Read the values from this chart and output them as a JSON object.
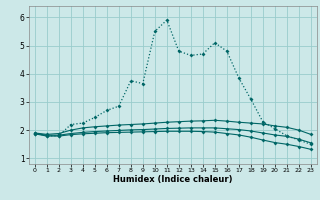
{
  "xlabel": "Humidex (Indice chaleur)",
  "xlim": [
    -0.5,
    23.5
  ],
  "ylim": [
    0.8,
    6.4
  ],
  "yticks": [
    1,
    2,
    3,
    4,
    5,
    6
  ],
  "xticks": [
    0,
    1,
    2,
    3,
    4,
    5,
    6,
    7,
    8,
    9,
    10,
    11,
    12,
    13,
    14,
    15,
    16,
    17,
    18,
    19,
    20,
    21,
    22,
    23
  ],
  "bg_color": "#cce8e8",
  "grid_color": "#99cccc",
  "line_color": "#006666",
  "line_main_dotted": {
    "x": [
      0,
      1,
      2,
      3,
      4,
      5,
      6,
      7,
      8,
      9,
      10,
      11,
      12,
      13,
      14,
      15,
      16,
      17,
      18,
      19,
      20,
      21,
      22,
      23
    ],
    "y": [
      1.9,
      1.8,
      1.8,
      2.2,
      2.25,
      2.45,
      2.7,
      2.85,
      3.75,
      3.65,
      5.5,
      5.9,
      4.8,
      4.65,
      4.7,
      5.1,
      4.8,
      3.85,
      3.1,
      2.3,
      2.05,
      1.8,
      1.65,
      1.5
    ]
  },
  "line_upper": {
    "x": [
      0,
      1,
      2,
      3,
      4,
      5,
      6,
      7,
      8,
      9,
      10,
      11,
      12,
      13,
      14,
      15,
      16,
      17,
      18,
      19,
      20,
      21,
      22,
      23
    ],
    "y": [
      1.9,
      1.85,
      1.88,
      2.0,
      2.08,
      2.12,
      2.15,
      2.18,
      2.2,
      2.22,
      2.25,
      2.28,
      2.3,
      2.32,
      2.33,
      2.35,
      2.32,
      2.28,
      2.25,
      2.22,
      2.15,
      2.1,
      2.0,
      1.85
    ]
  },
  "line_mid": {
    "x": [
      0,
      1,
      2,
      3,
      4,
      5,
      6,
      7,
      8,
      9,
      10,
      11,
      12,
      13,
      14,
      15,
      16,
      17,
      18,
      19,
      20,
      21,
      22,
      23
    ],
    "y": [
      1.88,
      1.82,
      1.82,
      1.88,
      1.92,
      1.95,
      1.97,
      1.99,
      2.01,
      2.02,
      2.04,
      2.06,
      2.07,
      2.08,
      2.08,
      2.08,
      2.05,
      2.02,
      1.97,
      1.9,
      1.83,
      1.78,
      1.68,
      1.55
    ]
  },
  "line_lower": {
    "x": [
      0,
      1,
      2,
      3,
      4,
      5,
      6,
      7,
      8,
      9,
      10,
      11,
      12,
      13,
      14,
      15,
      16,
      17,
      18,
      19,
      20,
      21,
      22,
      23
    ],
    "y": [
      1.87,
      1.79,
      1.79,
      1.84,
      1.87,
      1.89,
      1.91,
      1.92,
      1.93,
      1.94,
      1.95,
      1.96,
      1.96,
      1.96,
      1.95,
      1.93,
      1.88,
      1.83,
      1.75,
      1.65,
      1.56,
      1.5,
      1.42,
      1.32
    ]
  }
}
